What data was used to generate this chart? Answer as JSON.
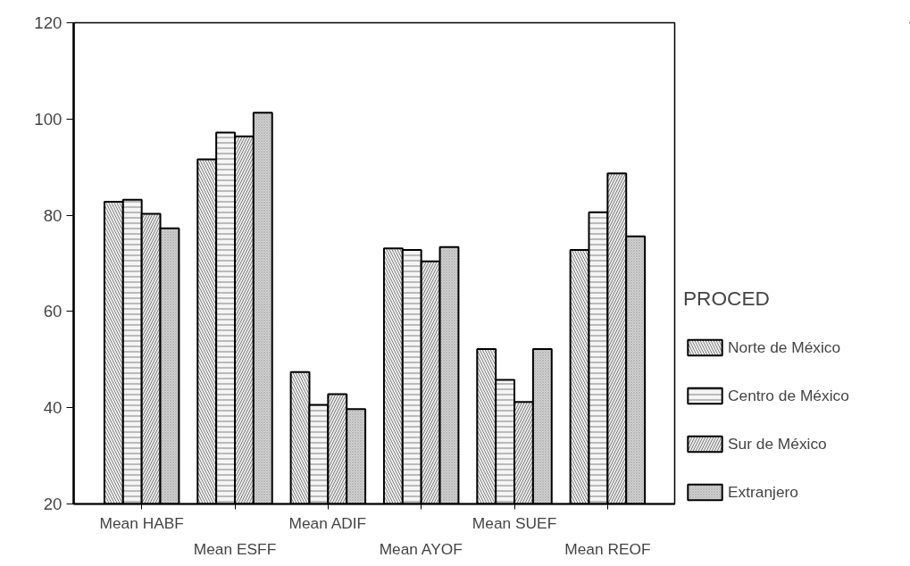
{
  "chart_data": {
    "type": "bar",
    "categories": [
      "Mean HABF",
      "Mean ESFF",
      "Mean ADIF",
      "Mean AYOF",
      "Mean SUEF",
      "Mean REOF"
    ],
    "series": [
      {
        "name": "Norte de México",
        "color": "#f0f0f0",
        "values": [
          82.8,
          91.6,
          47.4,
          73.1,
          52.2,
          72.8
        ]
      },
      {
        "name": "Centro de México",
        "color": "#f5f5f5",
        "values": [
          83.2,
          97.2,
          40.6,
          72.8,
          45.8,
          80.6
        ]
      },
      {
        "name": "Sur de México",
        "color": "#ebebeb",
        "values": [
          80.3,
          96.4,
          42.8,
          70.4,
          41.2,
          88.7
        ]
      },
      {
        "name": "Extranjero",
        "color": "#d4d4d4",
        "values": [
          77.3,
          101.3,
          39.7,
          73.4,
          52.2,
          75.6
        ]
      }
    ],
    "ylim": [
      20,
      120
    ],
    "yticks": [
      20,
      40,
      60,
      80,
      100,
      120
    ],
    "legend_title": "PROCED",
    "legend": "right",
    "grid": false
  }
}
